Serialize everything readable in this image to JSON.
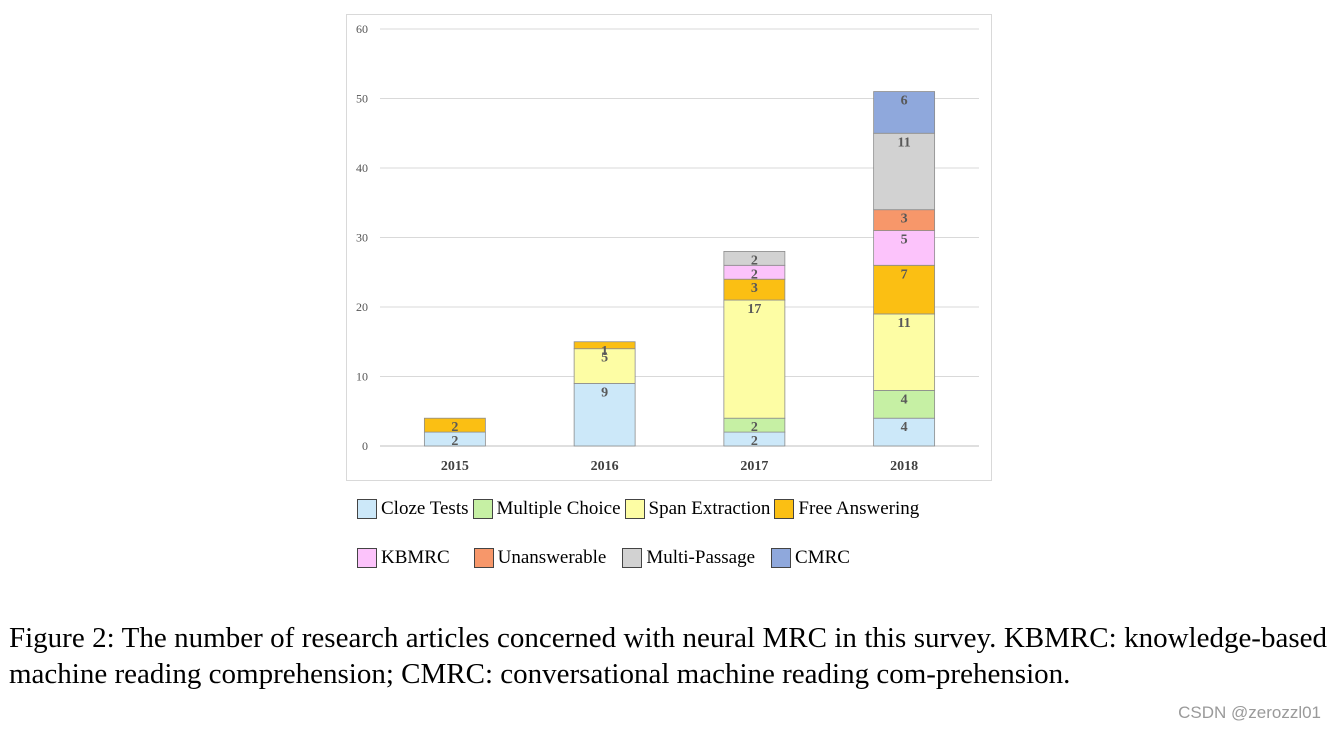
{
  "chart_data": {
    "type": "bar",
    "stacked": true,
    "categories": [
      "2015",
      "2016",
      "2017",
      "2018"
    ],
    "ylim": [
      0,
      60
    ],
    "yticks": [
      0,
      10,
      20,
      30,
      40,
      50,
      60
    ],
    "grid": true,
    "legend_position": "bottom",
    "series": [
      {
        "name": "Cloze Tests",
        "color": "#cce8f9",
        "values": [
          2,
          9,
          2,
          4
        ]
      },
      {
        "name": "Multiple Choice",
        "color": "#c6f0a4",
        "values": [
          0,
          0,
          2,
          4
        ]
      },
      {
        "name": "Span Extraction",
        "color": "#fdfda4",
        "values": [
          0,
          5,
          17,
          11
        ]
      },
      {
        "name": "Free Answering",
        "color": "#fbbf13",
        "values": [
          2,
          1,
          3,
          7
        ]
      },
      {
        "name": "KBMRC",
        "color": "#fcc3fb",
        "values": [
          0,
          0,
          2,
          5
        ]
      },
      {
        "name": "Unanswerable",
        "color": "#f7976a",
        "values": [
          0,
          0,
          0,
          3
        ]
      },
      {
        "name": "Multi-Passage",
        "color": "#d2d2d2",
        "values": [
          0,
          0,
          2,
          11
        ]
      },
      {
        "name": "CMRC",
        "color": "#8fa8dc",
        "values": [
          0,
          0,
          0,
          6
        ]
      }
    ]
  },
  "caption": "Figure 2: The number of research articles concerned with neural MRC in this survey. KBMRC: knowledge-based machine reading comprehension; CMRC: conversational machine reading com-prehension.",
  "watermark": "CSDN @zerozzl01"
}
